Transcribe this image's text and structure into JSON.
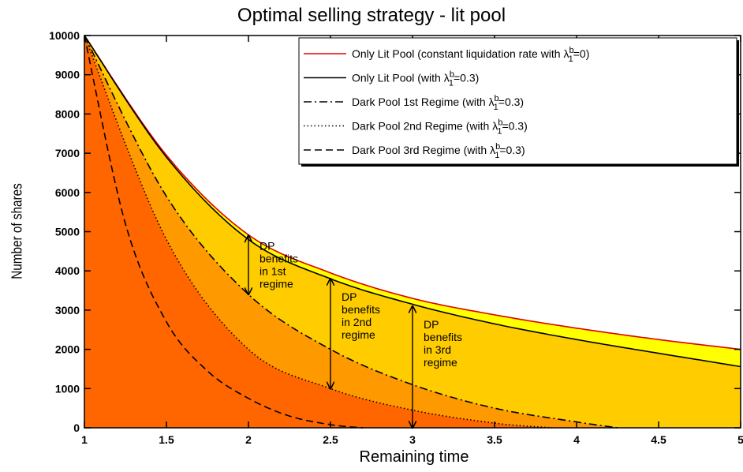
{
  "chart_data": {
    "type": "line",
    "title": "Optimal selling strategy - lit pool",
    "xlabel": "Remaining time",
    "ylabel": "Number of shares",
    "xlim": [
      1,
      5
    ],
    "ylim": [
      0,
      10000
    ],
    "x_ticks": [
      "1",
      "1.5",
      "2",
      "2.5",
      "3",
      "3.5",
      "4",
      "4.5",
      "5"
    ],
    "y_ticks": [
      "0",
      "1000",
      "2000",
      "3000",
      "4000",
      "5000",
      "6000",
      "7000",
      "8000",
      "9000",
      "10000"
    ],
    "grid": false,
    "legend_position": "top-right",
    "series": [
      {
        "name": "Only Lit Pool (constant liquidation rate with λ₁ᵇ=0)",
        "style": "solid",
        "color": "#e00000",
        "x": [
          1,
          1.5,
          2,
          2.5,
          3,
          3.5,
          4,
          4.5,
          5
        ],
        "values": [
          10000,
          6950,
          4920,
          3950,
          3300,
          2880,
          2540,
          2250,
          2000
        ]
      },
      {
        "name": "Only Lit Pool (with λ₁ᵇ=0.3)",
        "style": "solid",
        "color": "#000000",
        "x": [
          1,
          1.5,
          2,
          2.5,
          3,
          3.5,
          4,
          4.5,
          5
        ],
        "values": [
          10000,
          6900,
          4800,
          3800,
          3150,
          2650,
          2250,
          1900,
          1560
        ]
      },
      {
        "name": "Dark Pool 1st Regime (with λ₁ᵇ=0.3)",
        "style": "dashdot",
        "color": "#000000",
        "x": [
          1,
          1.5,
          2,
          2.5,
          3,
          3.5,
          4,
          4.25
        ],
        "values": [
          10000,
          5900,
          3400,
          2000,
          1100,
          500,
          150,
          0
        ]
      },
      {
        "name": "Dark Pool 2nd Regime (with λ₁ᵇ=0.3)",
        "style": "dotted",
        "color": "#000000",
        "x": [
          1,
          1.5,
          2,
          2.5,
          3,
          3.5,
          3.85
        ],
        "values": [
          10000,
          4800,
          2000,
          1000,
          450,
          120,
          0
        ]
      },
      {
        "name": "Dark Pool 3rd Regime (with λ₁ᵇ=0.3)",
        "style": "dashed",
        "color": "#000000",
        "x": [
          1,
          1.25,
          1.5,
          1.75,
          2,
          2.25,
          2.5,
          2.7
        ],
        "values": [
          10000,
          5200,
          2700,
          1450,
          750,
          300,
          80,
          0
        ]
      }
    ],
    "fills": {
      "lit_gap": "#ffff00",
      "regime1": "#ffcc00",
      "regime2": "#ff9900",
      "regime3": "#ff6600"
    },
    "annotations": [
      {
        "lines": [
          "DP",
          "benefits",
          "in 1st",
          "regime"
        ],
        "x": 2,
        "y_from": 3400,
        "y_to": 4900
      },
      {
        "lines": [
          "DP",
          "benefits",
          "in 2nd",
          "regime"
        ],
        "x": 2.5,
        "y_from": 1000,
        "y_to": 3800
      },
      {
        "lines": [
          "DP",
          "benefits",
          "in 3rd",
          "regime"
        ],
        "x": 3,
        "y_from": 0,
        "y_to": 3100
      }
    ],
    "legend": [
      {
        "main": "Only Lit Pool (constant liquidation rate with",
        "sym": "λ",
        "sup": "b",
        "sub": "1",
        "tail": "=0)"
      },
      {
        "main": "Only Lit Pool (with",
        "sym": "λ",
        "sup": "b",
        "sub": "1",
        "tail": "=0.3)"
      },
      {
        "main": "Dark Pool 1st Regime (with",
        "sym": "λ",
        "sup": "b",
        "sub": "1",
        "tail": "=0.3)"
      },
      {
        "main": "Dark Pool 2nd Regime (with",
        "sym": "λ",
        "sup": "b",
        "sub": "1",
        "tail": "=0.3)"
      },
      {
        "main": "Dark Pool 3rd Regime (with",
        "sym": "λ",
        "sup": "b",
        "sub": "1",
        "tail": "=0.3)"
      }
    ]
  }
}
